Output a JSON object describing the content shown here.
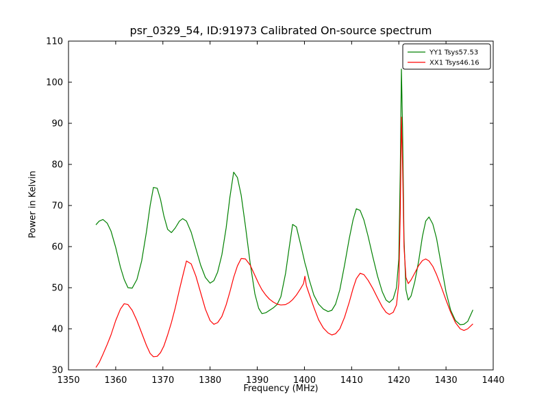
{
  "chart_data": {
    "type": "line",
    "title": "psr_0329_54, ID:91973 Calibrated On-source spectrum",
    "xlabel": "Frequency (MHz)",
    "ylabel": "Power in Kelvin",
    "xlim": [
      1350,
      1440
    ],
    "ylim": [
      30,
      110
    ],
    "xticks": [
      1350,
      1360,
      1370,
      1380,
      1390,
      1400,
      1410,
      1420,
      1430,
      1440
    ],
    "yticks": [
      30,
      40,
      50,
      60,
      70,
      80,
      90,
      100,
      110
    ],
    "grid": false,
    "legend_position": "upper right",
    "axes_color": "#000000",
    "series": [
      {
        "name": "YY1 Tsys57.53",
        "color": "#008000",
        "x": [
          1355.8,
          1356.5,
          1357.3,
          1358.2,
          1359,
          1360,
          1361,
          1361.8,
          1362.6,
          1363.5,
          1364.5,
          1365.5,
          1366.5,
          1367.3,
          1368,
          1368.8,
          1369.5,
          1370.2,
          1371,
          1371.8,
          1372.6,
          1373.5,
          1374.2,
          1375,
          1376,
          1377,
          1378,
          1379,
          1380,
          1380.8,
          1381.6,
          1382.5,
          1383.4,
          1384.2,
          1385,
          1385.8,
          1386.6,
          1387.5,
          1388.5,
          1389.5,
          1390.3,
          1391,
          1391.8,
          1392.6,
          1393.4,
          1394.2,
          1395,
          1396,
          1396.8,
          1397.5,
          1398.3,
          1399.2,
          1399.8,
          1400.1,
          1400.4,
          1401,
          1402,
          1403,
          1404,
          1405,
          1405.8,
          1406.6,
          1407.5,
          1408.5,
          1409.5,
          1410.3,
          1411,
          1411.8,
          1412.6,
          1413.5,
          1414.5,
          1415.5,
          1416.5,
          1417.3,
          1418,
          1418.8,
          1419.5,
          1420,
          1420.3,
          1420.55,
          1420.8,
          1421.1,
          1421.5,
          1422,
          1422.6,
          1423.4,
          1424.2,
          1425,
          1425.7,
          1426.4,
          1427.2,
          1428,
          1429,
          1430,
          1431,
          1432,
          1433,
          1433.8,
          1434.6,
          1435.7
        ],
        "y": [
          65.3,
          66.2,
          66.6,
          65.7,
          63.8,
          59.8,
          55.0,
          52.0,
          50.0,
          49.9,
          52.0,
          56.5,
          63.5,
          70.0,
          74.4,
          74.2,
          71.5,
          67.5,
          64.2,
          63.4,
          64.5,
          66.2,
          66.8,
          66.2,
          63.5,
          59.5,
          55.5,
          52.5,
          51.1,
          51.7,
          53.8,
          58.0,
          64.5,
          72.0,
          78.1,
          76.8,
          72.5,
          65.0,
          56.0,
          48.5,
          45.0,
          43.7,
          43.9,
          44.5,
          45.1,
          45.9,
          47.8,
          53.5,
          60.0,
          65.4,
          64.8,
          60.5,
          57.5,
          56.0,
          54.8,
          52.0,
          48.2,
          46.0,
          44.8,
          44.2,
          44.5,
          46.0,
          49.5,
          55.5,
          62.0,
          66.5,
          69.2,
          68.8,
          66.5,
          62.5,
          57.5,
          52.8,
          49.0,
          47.0,
          46.4,
          47.3,
          50.0,
          57.0,
          78.0,
          103.2,
          89.0,
          62.0,
          49.5,
          47.0,
          48.0,
          51.5,
          56.5,
          62.5,
          66.2,
          67.2,
          65.5,
          62.0,
          55.5,
          49.0,
          44.5,
          42.0,
          41.0,
          41.1,
          41.8,
          44.6
        ]
      },
      {
        "name": "XX1 Tsys46.16",
        "color": "#ff0000",
        "x": [
          1355.8,
          1356.5,
          1357.3,
          1358.2,
          1359,
          1360,
          1361,
          1361.8,
          1362.6,
          1363.5,
          1364.5,
          1365.5,
          1366.5,
          1367.3,
          1368,
          1368.8,
          1369.5,
          1370.2,
          1371,
          1371.8,
          1372.6,
          1373.5,
          1374.2,
          1375,
          1376,
          1377,
          1378,
          1379,
          1380,
          1380.8,
          1381.6,
          1382.5,
          1383.4,
          1384.2,
          1385,
          1385.8,
          1386.6,
          1387.5,
          1388.5,
          1389.5,
          1390.3,
          1391,
          1391.8,
          1392.6,
          1393.4,
          1394.2,
          1395,
          1396,
          1396.8,
          1397.5,
          1398.3,
          1399.2,
          1399.8,
          1400.1,
          1400.4,
          1401,
          1402,
          1403,
          1404,
          1405,
          1405.8,
          1406.6,
          1407.5,
          1408.5,
          1409.5,
          1410.3,
          1411,
          1411.8,
          1412.6,
          1413.5,
          1414.5,
          1415.5,
          1416.5,
          1417.3,
          1418,
          1418.8,
          1419.5,
          1420,
          1420.3,
          1420.55,
          1420.8,
          1421.1,
          1421.5,
          1422,
          1422.6,
          1423.4,
          1424.2,
          1425,
          1425.7,
          1426.4,
          1427.2,
          1428,
          1429,
          1430,
          1431,
          1432,
          1433,
          1433.8,
          1434.6,
          1435.7
        ],
        "y": [
          30.6,
          31.8,
          33.8,
          36.2,
          38.5,
          42.0,
          44.8,
          46.1,
          45.9,
          44.5,
          42.0,
          39.0,
          36.0,
          34.0,
          33.2,
          33.3,
          34.2,
          35.8,
          38.5,
          41.5,
          45.0,
          49.5,
          52.8,
          56.5,
          55.8,
          52.8,
          48.8,
          44.8,
          42.0,
          41.1,
          41.5,
          43.0,
          45.8,
          49.0,
          52.5,
          55.3,
          57.1,
          57.0,
          55.5,
          53.0,
          51.0,
          49.5,
          48.2,
          47.2,
          46.5,
          46.0,
          45.8,
          45.9,
          46.4,
          47.1,
          48.2,
          49.8,
          51.0,
          52.8,
          50.5,
          48.5,
          45.2,
          42.2,
          40.2,
          39.0,
          38.5,
          38.8,
          40.0,
          42.8,
          46.5,
          49.8,
          52.2,
          53.5,
          53.2,
          51.8,
          49.8,
          47.5,
          45.3,
          44.0,
          43.5,
          44.0,
          45.8,
          51.0,
          68.0,
          91.5,
          80.0,
          60.0,
          52.5,
          51.0,
          51.9,
          53.6,
          55.4,
          56.6,
          57.0,
          56.5,
          55.2,
          53.2,
          50.2,
          47.0,
          44.0,
          41.5,
          40.0,
          39.6,
          40.0,
          41.2
        ]
      }
    ]
  }
}
